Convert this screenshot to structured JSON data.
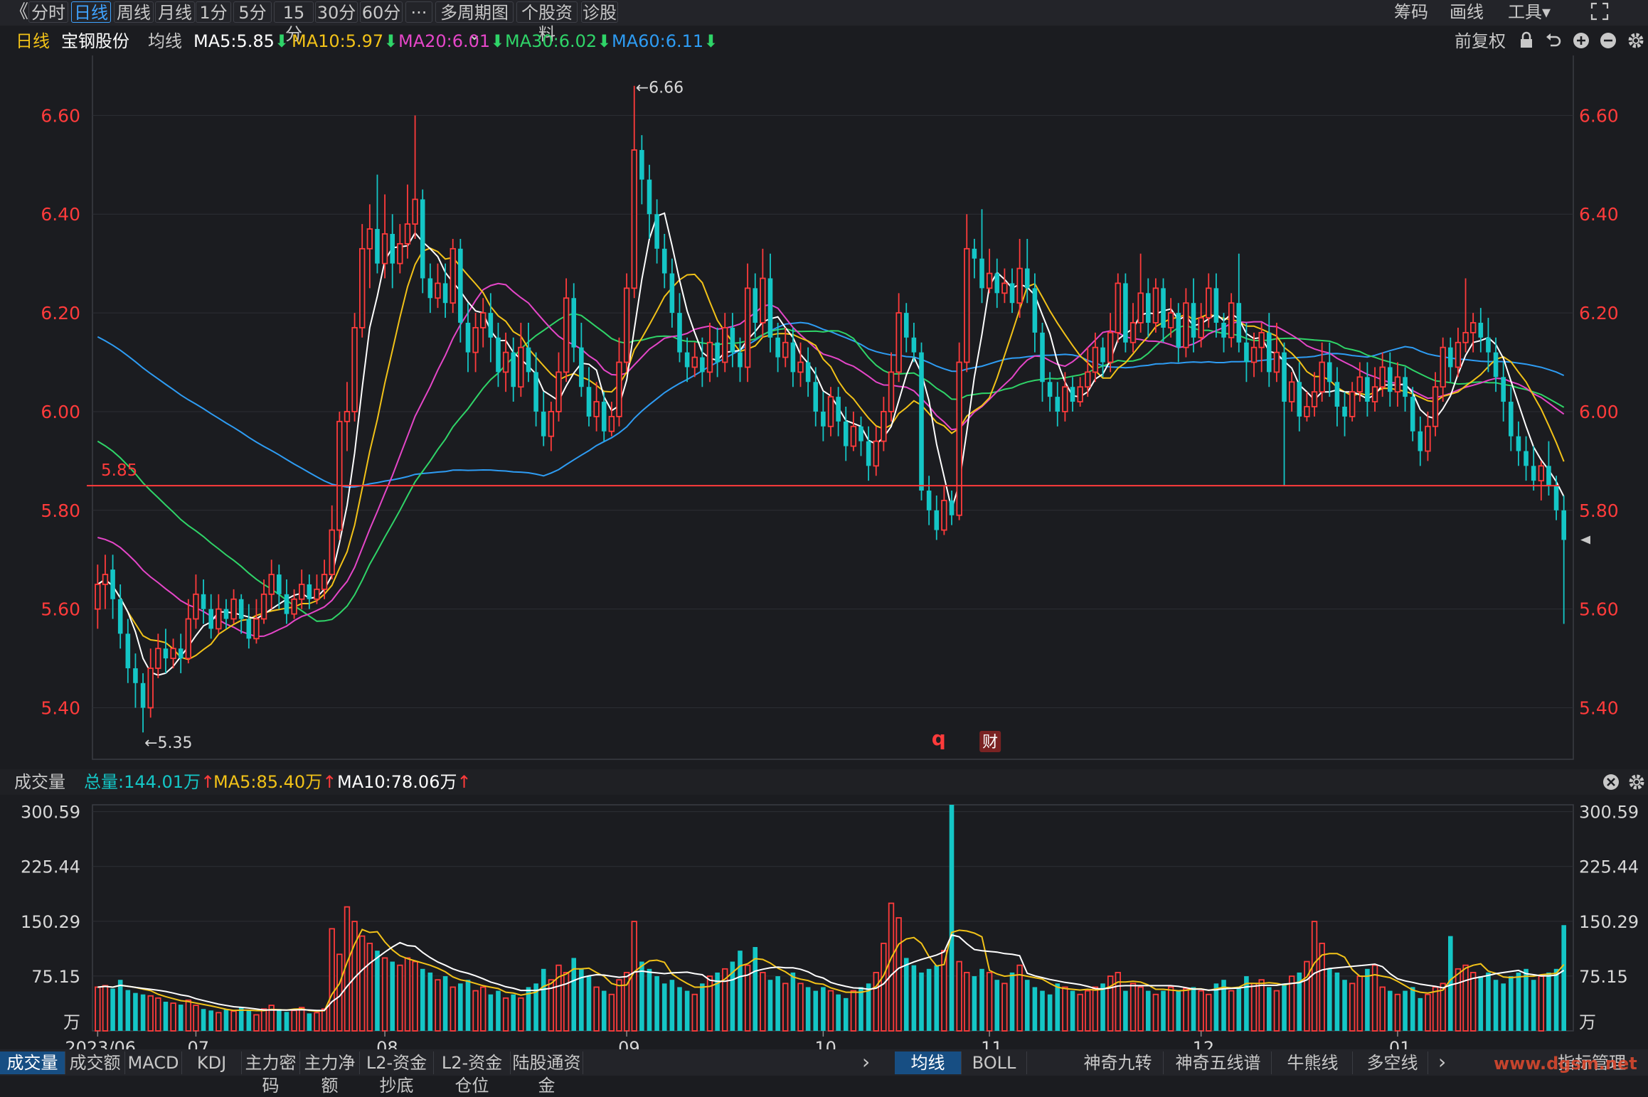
{
  "toolbar": {
    "back_icon": "double-chevron-left-icon",
    "tabs": [
      "分时",
      "日线",
      "周线",
      "月线",
      "1分",
      "5分",
      "15分",
      "30分",
      "60分",
      "···",
      "多周期图 ⌄",
      "个股资料",
      "诊股"
    ],
    "active_tab": "日线",
    "right_items": [
      "筹码",
      "画线",
      "工具▾"
    ],
    "fullscreen_icon": "fullscreen-icon"
  },
  "legend": {
    "period": "日线",
    "stock_name": "宝钢股份",
    "ma_label": "均线",
    "ma5": "MA5:5.85",
    "ma10": "MA10:5.97",
    "ma20": "MA20:6.01",
    "ma30": "MA30:6.02",
    "ma60": "MA60:6.11",
    "adjust": "前复权",
    "colors": {
      "ma5": "#ffffff",
      "ma10": "#f2c218",
      "ma20": "#e546c8",
      "ma30": "#2fd468",
      "ma60": "#2e9cf3",
      "up": "#ff3b3b",
      "down": "#14c6c6",
      "arrow_down": "#2fd468",
      "arrow_up": "#ff3b3b"
    }
  },
  "price_axis": {
    "ticks": [
      "6.60",
      "6.40",
      "6.20",
      "6.00",
      "5.80",
      "5.60",
      "5.40"
    ]
  },
  "annotations": {
    "high": "←6.66",
    "low": "←5.35",
    "hline": "5.85",
    "q_mark": "q",
    "cai_mark": "财"
  },
  "volume_legend": {
    "title": "成交量",
    "total": "总量:144.01万",
    "ma5": "MA5:85.40万",
    "ma10": "MA10:78.06万",
    "arrow_up": "↑"
  },
  "volume_axis": {
    "ticks": [
      "300.59",
      "225.44",
      "150.29",
      "75.15"
    ],
    "unit": "万"
  },
  "date_axis": {
    "labels": [
      "2023/06",
      "07",
      "08",
      "09",
      "10",
      "11",
      "12",
      "01"
    ]
  },
  "bottom_tabs_left": [
    "成交量",
    "成交额",
    "MACD",
    "KDJ",
    "主力密码",
    "主力净额",
    "L2-资金抄底",
    "L2-资金仓位",
    "陆股通资金"
  ],
  "bottom_tabs_right": [
    "均线",
    "BOLL",
    "神奇九转",
    "神奇五线谱",
    "牛熊线",
    "多空线"
  ],
  "bottom_right_label": "指标管理",
  "watermark": "www.dgsm.net",
  "chart_data": {
    "type": "candlestick",
    "symbol": "宝钢股份",
    "price_range": [
      5.31,
      6.71
    ],
    "volume_range": [
      0,
      310
    ],
    "volume_unit": "万",
    "reference_line": 5.85,
    "max_high": 6.66,
    "min_low": 5.35,
    "ohlc": [
      [
        5.6,
        5.65,
        5.69,
        5.56
      ],
      [
        5.65,
        5.67,
        5.71,
        5.6
      ],
      [
        5.68,
        5.62,
        5.71,
        5.58
      ],
      [
        5.62,
        5.55,
        5.65,
        5.52
      ],
      [
        5.55,
        5.48,
        5.58,
        5.45
      ],
      [
        5.48,
        5.45,
        5.51,
        5.4
      ],
      [
        5.45,
        5.4,
        5.47,
        5.35
      ],
      [
        5.4,
        5.48,
        5.52,
        5.38
      ],
      [
        5.48,
        5.52,
        5.55,
        5.46
      ],
      [
        5.52,
        5.5,
        5.56,
        5.47
      ],
      [
        5.5,
        5.52,
        5.54,
        5.48
      ],
      [
        5.52,
        5.5,
        5.55,
        5.47
      ],
      [
        5.5,
        5.58,
        5.62,
        5.49
      ],
      [
        5.58,
        5.63,
        5.67,
        5.56
      ],
      [
        5.63,
        5.6,
        5.66,
        5.57
      ],
      [
        5.6,
        5.56,
        5.63,
        5.54
      ],
      [
        5.56,
        5.6,
        5.63,
        5.55
      ],
      [
        5.6,
        5.58,
        5.62,
        5.56
      ],
      [
        5.58,
        5.62,
        5.64,
        5.57
      ],
      [
        5.62,
        5.58,
        5.63,
        5.55
      ],
      [
        5.58,
        5.54,
        5.61,
        5.52
      ],
      [
        5.54,
        5.58,
        5.62,
        5.53
      ],
      [
        5.58,
        5.63,
        5.66,
        5.57
      ],
      [
        5.63,
        5.67,
        5.7,
        5.6
      ],
      [
        5.67,
        5.63,
        5.69,
        5.6
      ],
      [
        5.63,
        5.59,
        5.66,
        5.57
      ],
      [
        5.59,
        5.62,
        5.64,
        5.58
      ],
      [
        5.62,
        5.65,
        5.68,
        5.6
      ],
      [
        5.65,
        5.62,
        5.67,
        5.6
      ],
      [
        5.62,
        5.64,
        5.67,
        5.61
      ],
      [
        5.64,
        5.67,
        5.7,
        5.62
      ],
      [
        5.67,
        5.76,
        5.81,
        5.66
      ],
      [
        5.76,
        5.98,
        6.0,
        5.74
      ],
      [
        5.98,
        6.0,
        6.06,
        5.92
      ],
      [
        6.0,
        6.17,
        6.2,
        5.98
      ],
      [
        6.17,
        6.33,
        6.38,
        6.15
      ],
      [
        6.33,
        6.37,
        6.42,
        6.25
      ],
      [
        6.37,
        6.3,
        6.48,
        6.28
      ],
      [
        6.3,
        6.36,
        6.44,
        6.27
      ],
      [
        6.36,
        6.3,
        6.4,
        6.25
      ],
      [
        6.3,
        6.34,
        6.38,
        6.28
      ],
      [
        6.34,
        6.38,
        6.46,
        6.31
      ],
      [
        6.38,
        6.43,
        6.6,
        6.35
      ],
      [
        6.43,
        6.27,
        6.45,
        6.24
      ],
      [
        6.27,
        6.23,
        6.3,
        6.2
      ],
      [
        6.23,
        6.26,
        6.3,
        6.21
      ],
      [
        6.26,
        6.22,
        6.3,
        6.19
      ],
      [
        6.22,
        6.33,
        6.35,
        6.2
      ],
      [
        6.33,
        6.18,
        6.35,
        6.14
      ],
      [
        6.18,
        6.12,
        6.22,
        6.08
      ],
      [
        6.12,
        6.17,
        6.2,
        6.08
      ],
      [
        6.17,
        6.2,
        6.23,
        6.13
      ],
      [
        6.2,
        6.15,
        6.24,
        6.1
      ],
      [
        6.15,
        6.08,
        6.18,
        6.05
      ],
      [
        6.08,
        6.12,
        6.16,
        6.04
      ],
      [
        6.12,
        6.05,
        6.15,
        6.02
      ],
      [
        6.05,
        6.13,
        6.18,
        6.03
      ],
      [
        6.13,
        6.08,
        6.18,
        6.06
      ],
      [
        6.08,
        6.0,
        6.12,
        5.97
      ],
      [
        6.0,
        5.95,
        6.04,
        5.93
      ],
      [
        5.95,
        6.0,
        6.02,
        5.92
      ],
      [
        6.0,
        6.08,
        6.12,
        5.98
      ],
      [
        6.08,
        6.23,
        6.27,
        6.06
      ],
      [
        6.23,
        6.13,
        6.26,
        6.1
      ],
      [
        6.13,
        6.05,
        6.18,
        6.03
      ],
      [
        6.05,
        5.99,
        6.09,
        5.97
      ],
      [
        5.99,
        6.02,
        6.06,
        5.96
      ],
      [
        6.02,
        5.96,
        6.04,
        5.94
      ],
      [
        5.96,
        5.99,
        6.02,
        5.95
      ],
      [
        5.99,
        6.1,
        6.15,
        5.97
      ],
      [
        6.1,
        6.25,
        6.28,
        6.08
      ],
      [
        6.25,
        6.53,
        6.66,
        6.23
      ],
      [
        6.53,
        6.47,
        6.56,
        6.42
      ],
      [
        6.47,
        6.4,
        6.5,
        6.35
      ],
      [
        6.4,
        6.33,
        6.43,
        6.3
      ],
      [
        6.33,
        6.28,
        6.36,
        6.25
      ],
      [
        6.28,
        6.2,
        6.31,
        6.17
      ],
      [
        6.2,
        6.12,
        6.24,
        6.1
      ],
      [
        6.12,
        6.09,
        6.15,
        6.06
      ],
      [
        6.09,
        6.11,
        6.14,
        6.07
      ],
      [
        6.11,
        6.08,
        6.15,
        6.05
      ],
      [
        6.08,
        6.14,
        6.18,
        6.06
      ],
      [
        6.14,
        6.1,
        6.17,
        6.07
      ],
      [
        6.1,
        6.17,
        6.2,
        6.08
      ],
      [
        6.17,
        6.12,
        6.2,
        6.09
      ],
      [
        6.12,
        6.09,
        6.15,
        6.06
      ],
      [
        6.09,
        6.25,
        6.3,
        6.06
      ],
      [
        6.25,
        6.18,
        6.28,
        6.15
      ],
      [
        6.18,
        6.27,
        6.33,
        6.15
      ],
      [
        6.27,
        6.15,
        6.32,
        6.12
      ],
      [
        6.15,
        6.11,
        6.18,
        6.08
      ],
      [
        6.11,
        6.14,
        6.17,
        6.09
      ],
      [
        6.14,
        6.08,
        6.17,
        6.05
      ],
      [
        6.08,
        6.1,
        6.14,
        6.05
      ],
      [
        6.1,
        6.06,
        6.13,
        6.03
      ],
      [
        6.06,
        6.0,
        6.09,
        5.97
      ],
      [
        6.0,
        5.97,
        6.04,
        5.94
      ],
      [
        5.97,
        6.03,
        6.05,
        5.95
      ],
      [
        6.03,
        5.98,
        6.05,
        5.95
      ],
      [
        5.98,
        5.93,
        6.01,
        5.9
      ],
      [
        5.93,
        5.97,
        6.0,
        5.92
      ],
      [
        5.97,
        5.94,
        5.99,
        5.91
      ],
      [
        5.94,
        5.89,
        5.97,
        5.86
      ],
      [
        5.89,
        5.94,
        5.97,
        5.87
      ],
      [
        5.94,
        6.0,
        6.03,
        5.92
      ],
      [
        6.0,
        6.08,
        6.12,
        5.98
      ],
      [
        6.08,
        6.2,
        6.24,
        6.06
      ],
      [
        6.2,
        6.15,
        6.22,
        6.12
      ],
      [
        6.15,
        6.12,
        6.18,
        6.1
      ],
      [
        6.12,
        5.84,
        6.14,
        5.82
      ],
      [
        5.84,
        5.8,
        5.87,
        5.77
      ],
      [
        5.8,
        5.76,
        5.83,
        5.74
      ],
      [
        5.76,
        5.82,
        5.85,
        5.75
      ],
      [
        5.82,
        5.79,
        5.84,
        5.77
      ],
      [
        5.79,
        6.1,
        6.14,
        5.78
      ],
      [
        6.1,
        6.33,
        6.4,
        6.08
      ],
      [
        6.33,
        6.31,
        6.35,
        6.27
      ],
      [
        6.31,
        6.25,
        6.41,
        6.22
      ],
      [
        6.25,
        6.28,
        6.33,
        6.24
      ],
      [
        6.28,
        6.24,
        6.31,
        6.21
      ],
      [
        6.24,
        6.26,
        6.29,
        6.22
      ],
      [
        6.26,
        6.22,
        6.29,
        6.2
      ],
      [
        6.22,
        6.29,
        6.35,
        6.19
      ],
      [
        6.29,
        6.25,
        6.35,
        6.22
      ],
      [
        6.25,
        6.16,
        6.28,
        6.12
      ],
      [
        6.16,
        6.06,
        6.18,
        6.02
      ],
      [
        6.06,
        6.03,
        6.08,
        6.0
      ],
      [
        6.03,
        6.0,
        6.06,
        5.97
      ],
      [
        6.0,
        6.05,
        6.08,
        5.98
      ],
      [
        6.05,
        6.02,
        6.07,
        6.0
      ],
      [
        6.02,
        6.05,
        6.07,
        6.01
      ],
      [
        6.05,
        6.08,
        6.13,
        6.03
      ],
      [
        6.08,
        6.13,
        6.16,
        6.06
      ],
      [
        6.13,
        6.1,
        6.15,
        6.07
      ],
      [
        6.1,
        6.16,
        6.2,
        6.08
      ],
      [
        6.16,
        6.26,
        6.28,
        6.14
      ],
      [
        6.26,
        6.14,
        6.28,
        6.12
      ],
      [
        6.14,
        6.18,
        6.22,
        6.12
      ],
      [
        6.18,
        6.24,
        6.32,
        6.16
      ],
      [
        6.24,
        6.18,
        6.27,
        6.15
      ],
      [
        6.18,
        6.25,
        6.27,
        6.16
      ],
      [
        6.25,
        6.17,
        6.27,
        6.14
      ],
      [
        6.17,
        6.2,
        6.23,
        6.15
      ],
      [
        6.2,
        6.13,
        6.22,
        6.1
      ],
      [
        6.13,
        6.22,
        6.25,
        6.11
      ],
      [
        6.22,
        6.15,
        6.27,
        6.12
      ],
      [
        6.15,
        6.19,
        6.22,
        6.13
      ],
      [
        6.19,
        6.25,
        6.28,
        6.17
      ],
      [
        6.25,
        6.18,
        6.28,
        6.15
      ],
      [
        6.18,
        6.15,
        6.2,
        6.12
      ],
      [
        6.15,
        6.22,
        6.24,
        6.13
      ],
      [
        6.22,
        6.14,
        6.32,
        6.12
      ],
      [
        6.14,
        6.1,
        6.18,
        6.06
      ],
      [
        6.1,
        6.13,
        6.16,
        6.07
      ],
      [
        6.13,
        6.16,
        6.18,
        6.08
      ],
      [
        6.16,
        6.08,
        6.2,
        6.05
      ],
      [
        6.08,
        6.12,
        6.18,
        6.06
      ],
      [
        6.12,
        6.02,
        6.14,
        5.85
      ],
      [
        6.02,
        6.06,
        6.08,
        6.0
      ],
      [
        6.06,
        5.99,
        6.1,
        5.96
      ],
      [
        5.99,
        6.01,
        6.04,
        5.98
      ],
      [
        6.01,
        6.04,
        6.08,
        5.99
      ],
      [
        6.04,
        6.1,
        6.14,
        6.02
      ],
      [
        6.1,
        6.06,
        6.14,
        6.03
      ],
      [
        6.06,
        6.01,
        6.09,
        5.97
      ],
      [
        6.01,
        5.99,
        6.04,
        5.95
      ],
      [
        5.99,
        6.04,
        6.06,
        5.98
      ],
      [
        6.04,
        6.07,
        6.1,
        6.02
      ],
      [
        6.07,
        6.02,
        6.1,
        5.99
      ],
      [
        6.02,
        6.05,
        6.09,
        6.0
      ],
      [
        6.05,
        6.09,
        6.12,
        6.03
      ],
      [
        6.09,
        6.04,
        6.12,
        6.01
      ],
      [
        6.04,
        6.07,
        6.1,
        6.01
      ],
      [
        6.07,
        6.03,
        6.09,
        6.0
      ],
      [
        6.03,
        5.96,
        6.05,
        5.94
      ],
      [
        5.96,
        5.92,
        5.99,
        5.89
      ],
      [
        5.92,
        5.97,
        6.0,
        5.9
      ],
      [
        5.97,
        6.05,
        6.08,
        5.95
      ],
      [
        6.05,
        6.13,
        6.15,
        6.02
      ],
      [
        6.13,
        6.09,
        6.15,
        6.06
      ],
      [
        6.09,
        6.14,
        6.17,
        6.07
      ],
      [
        6.14,
        6.16,
        6.27,
        6.12
      ],
      [
        6.16,
        6.18,
        6.2,
        6.12
      ],
      [
        6.18,
        6.15,
        6.21,
        6.12
      ],
      [
        6.15,
        6.12,
        6.19,
        6.08
      ],
      [
        6.12,
        6.07,
        6.15,
        6.04
      ],
      [
        6.07,
        6.02,
        6.1,
        5.98
      ],
      [
        6.02,
        5.95,
        6.05,
        5.92
      ],
      [
        5.95,
        5.92,
        5.98,
        5.89
      ],
      [
        5.92,
        5.89,
        5.95,
        5.86
      ],
      [
        5.89,
        5.86,
        5.93,
        5.84
      ],
      [
        5.86,
        5.89,
        5.9,
        5.82
      ],
      [
        5.89,
        5.85,
        5.94,
        5.83
      ],
      [
        5.85,
        5.8,
        5.87,
        5.78
      ],
      [
        5.8,
        5.74,
        5.83,
        5.57
      ]
    ],
    "volume": [
      60,
      62,
      58,
      70,
      56,
      52,
      50,
      48,
      45,
      40,
      38,
      36,
      42,
      35,
      30,
      28,
      25,
      30,
      27,
      32,
      28,
      22,
      30,
      35,
      30,
      26,
      28,
      32,
      24,
      25,
      30,
      140,
      105,
      170,
      150,
      130,
      120,
      110,
      100,
      95,
      90,
      100,
      95,
      85,
      80,
      70,
      75,
      60,
      65,
      70,
      55,
      60,
      50,
      55,
      45,
      50,
      45,
      60,
      65,
      85,
      70,
      90,
      80,
      100,
      85,
      75,
      60,
      55,
      50,
      70,
      80,
      150,
      95,
      85,
      75,
      65,
      70,
      60,
      55,
      50,
      65,
      75,
      80,
      85,
      95,
      110,
      90,
      115,
      80,
      70,
      75,
      65,
      80,
      65,
      60,
      55,
      60,
      55,
      50,
      45,
      55,
      60,
      65,
      80,
      120,
      175,
      155,
      100,
      90,
      80,
      85,
      90,
      110,
      310,
      95,
      80,
      75,
      85,
      80,
      70,
      65,
      80,
      90,
      70,
      60,
      55,
      50,
      65,
      60,
      55,
      50,
      55,
      60,
      65,
      75,
      80,
      55,
      65,
      60,
      55,
      50,
      55,
      60,
      55,
      58,
      60,
      55,
      50,
      65,
      70,
      55,
      60,
      75,
      65,
      70,
      60,
      55,
      65,
      75,
      80,
      95,
      150,
      120,
      85,
      80,
      70,
      65,
      75,
      85,
      90,
      60,
      55,
      50,
      55,
      60,
      45,
      50,
      60,
      65,
      130,
      85,
      90,
      80,
      75,
      80,
      70,
      65,
      75,
      80,
      85,
      70,
      75,
      80,
      85,
      145
    ],
    "ma_lines": [
      "MA5",
      "MA10",
      "MA20",
      "MA30",
      "MA60"
    ],
    "ma_initial": {
      "MA20": 5.75,
      "MA30": 5.95,
      "MA60": 6.16
    },
    "month_starts": {
      "2023/06": 0,
      "07": 13,
      "08": 38,
      "09": 70,
      "10": 96,
      "11": 118,
      "12": 146,
      "01": 172
    }
  }
}
